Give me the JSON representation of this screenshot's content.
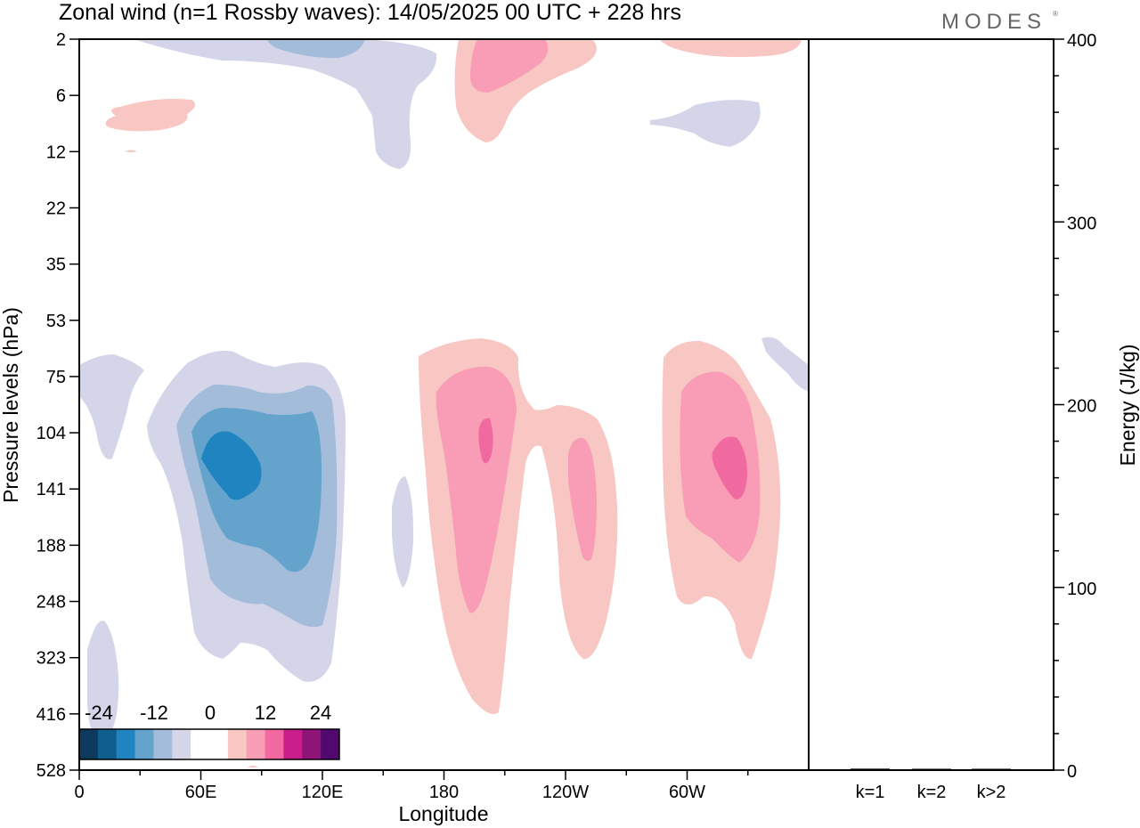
{
  "chart_data": [
    {
      "type": "heatmap",
      "title": "Zonal wind (n=1 Rossby waves):  14/05/2025  00 UTC  + 228 hrs",
      "xlabel": "Longitude",
      "ylabel": "Pressure levels (hPa)",
      "x_ticks": [
        "0",
        "60E",
        "120E",
        "180",
        "120W",
        "60W"
      ],
      "y_ticks": [
        "2",
        "6",
        "12",
        "22",
        "35",
        "53",
        "75",
        "104",
        "141",
        "188",
        "248",
        "323",
        "416",
        "528"
      ],
      "y_scale": "log-pressure (inverted)",
      "contour_interval": 6,
      "colorbar": {
        "labels": [
          "-24",
          "-12",
          "0",
          "12",
          "24"
        ],
        "colors": [
          "#0d3a5c",
          "#0f5e90",
          "#1f84c0",
          "#63a3cc",
          "#a3bcda",
          "#d4d5e8",
          "#ffffff",
          "#ffffff",
          "#f8c7c3",
          "#f89db5",
          "#f06aa0",
          "#c81e8a",
          "#8e1478",
          "#52096e"
        ]
      },
      "features": [
        {
          "lon": 80,
          "p": 120,
          "sign": "negative",
          "peak": -20
        },
        {
          "lon": 195,
          "p": 112,
          "sign": "positive",
          "peak": 20
        },
        {
          "lon": 235,
          "p": 160,
          "sign": "positive",
          "peak": 14
        },
        {
          "lon": 282,
          "p": 118,
          "sign": "positive",
          "peak": 19
        },
        {
          "lon": 200,
          "p": 3,
          "sign": "positive",
          "peak": 14
        },
        {
          "lon": 90,
          "p": 2,
          "sign": "negative",
          "peak": -10
        }
      ]
    },
    {
      "type": "bar",
      "ylabel": "Energy (J/kg)",
      "categories": [
        "k=1",
        "k=2",
        "k>2"
      ],
      "values": [
        0.8,
        0.2,
        0.2
      ],
      "ylim": [
        0,
        400
      ],
      "y_ticks": [
        "0",
        "100",
        "200",
        "300",
        "400"
      ]
    }
  ],
  "colors": {
    "neg4": "#1f84c0",
    "neg3": "#63a3cc",
    "neg2": "#a3bcda",
    "neg1": "#d4d5e8",
    "pos1": "#f8c7c3",
    "pos2": "#f89db5",
    "pos3": "#f06aa0"
  },
  "logo": "MODES"
}
